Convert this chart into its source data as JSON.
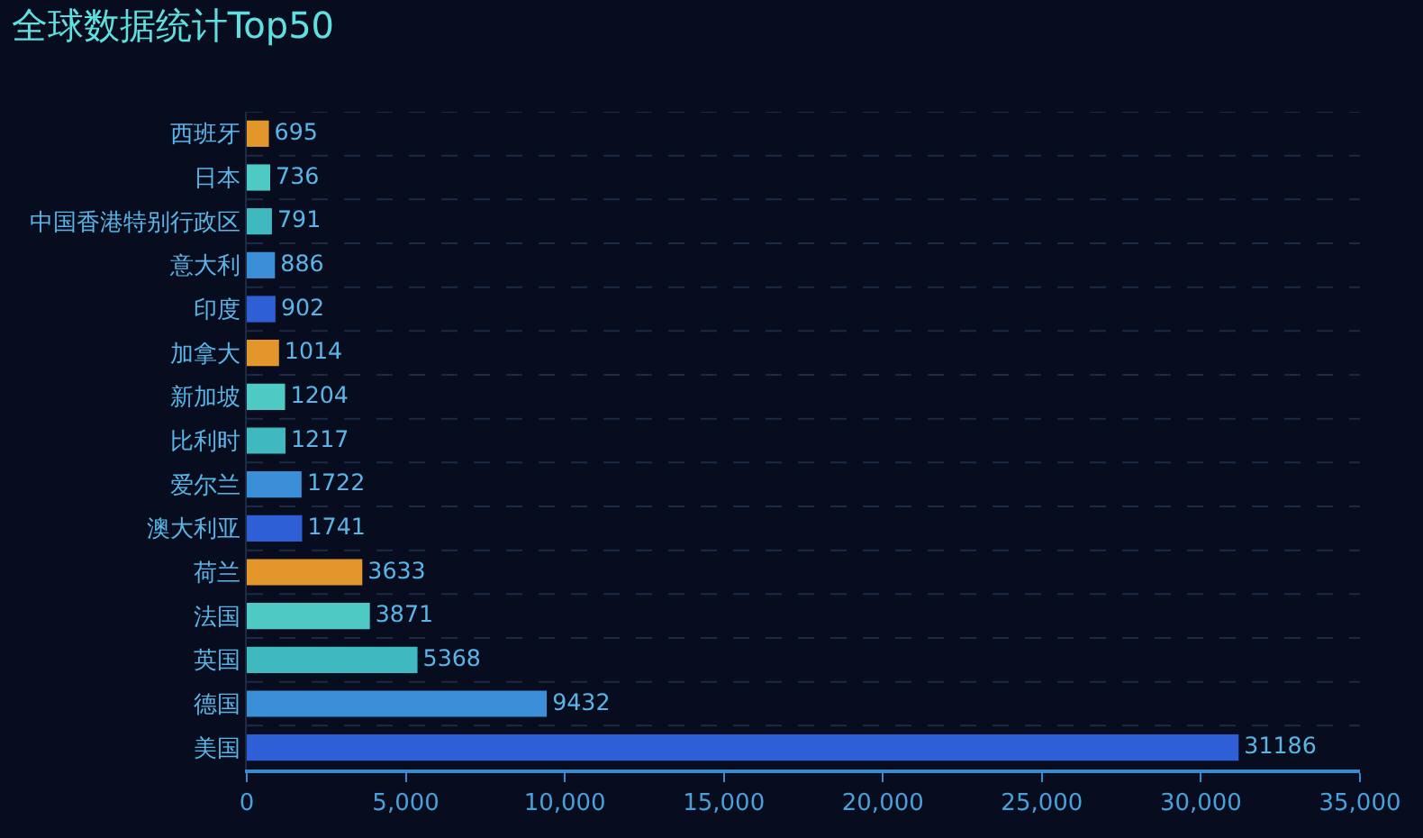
{
  "chart_data": {
    "type": "bar",
    "orientation": "horizontal",
    "title": "全球数据统计Top50",
    "categories": [
      "西班牙",
      "日本",
      "中国香港特别行政区",
      "意大利",
      "印度",
      "加拿大",
      "新加坡",
      "比利时",
      "爱尔兰",
      "澳大利亚",
      "荷兰",
      "法国",
      "英国",
      "德国",
      "美国"
    ],
    "values": [
      695,
      736,
      791,
      886,
      902,
      1014,
      1204,
      1217,
      1722,
      1741,
      3633,
      3871,
      5368,
      9432,
      31186
    ],
    "colors": [
      "#e3962c",
      "#4ec9c4",
      "#3fb8c0",
      "#3a8fd8",
      "#2f5fd6",
      "#e3962c",
      "#4ec9c4",
      "#3fb8c0",
      "#3a8fd8",
      "#2f5fd6",
      "#e3962c",
      "#4ec9c4",
      "#3fb8c0",
      "#3a8fd8",
      "#2f5fd6"
    ],
    "xlim": [
      0,
      35000
    ],
    "xticks": [
      {
        "value": 0,
        "label": "0"
      },
      {
        "value": 5000,
        "label": "5,000"
      },
      {
        "value": 10000,
        "label": "10,000"
      },
      {
        "value": 15000,
        "label": "15,000"
      },
      {
        "value": 20000,
        "label": "20,000"
      },
      {
        "value": 25000,
        "label": "25,000"
      },
      {
        "value": 30000,
        "label": "30,000"
      },
      {
        "value": 35000,
        "label": "35,000"
      }
    ],
    "data_labels": true,
    "grid": "y"
  }
}
